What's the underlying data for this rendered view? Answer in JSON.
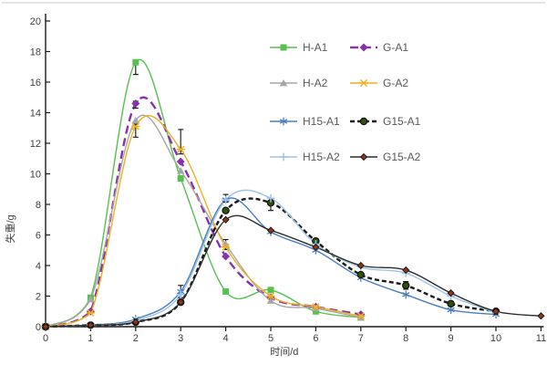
{
  "figure": {
    "background": "#ffffff",
    "top_border_color": "#cccccc",
    "axis_color": "#1a1a1a",
    "tick_label_color": "#404040",
    "legend_text_color": "#595959"
  },
  "chart_data": {
    "type": "line",
    "title": "",
    "xlabel": "时间/d",
    "ylabel": "失重/g",
    "xlim": [
      0,
      11
    ],
    "ylim": [
      0,
      20
    ],
    "x_ticks": [
      0,
      1,
      2,
      3,
      4,
      5,
      6,
      7,
      8,
      9,
      10,
      11
    ],
    "y_ticks": [
      0,
      2,
      4,
      6,
      8,
      10,
      12,
      14,
      16,
      18,
      20
    ],
    "grid": false,
    "legend_position": "upper-center-two-columns",
    "series": [
      {
        "name": "H-A1",
        "color": "#56c14e",
        "dash": "solid",
        "marker": "square",
        "x": [
          0,
          1,
          2,
          3,
          4,
          5,
          6,
          7
        ],
        "values": [
          0,
          1.9,
          17.3,
          9.7,
          2.3,
          2.4,
          1.0,
          0.6
        ]
      },
      {
        "name": "G-A1",
        "color": "#8833aa",
        "dash": "dashed",
        "marker": "diamond",
        "x": [
          0,
          1,
          2,
          3,
          4,
          5,
          6,
          7
        ],
        "values": [
          0,
          1.0,
          14.6,
          10.8,
          4.6,
          1.9,
          1.3,
          0.8
        ]
      },
      {
        "name": "H-A2",
        "color": "#a6a6a6",
        "dash": "solid",
        "marker": "triangle",
        "x": [
          0,
          1,
          2,
          3,
          4,
          5,
          6,
          7
        ],
        "values": [
          0,
          1.8,
          13.5,
          10.2,
          5.4,
          1.7,
          1.2,
          0.6
        ]
      },
      {
        "name": "G-A2",
        "color": "#efb024",
        "dash": "solid",
        "marker": "xstar",
        "x": [
          0,
          1,
          2,
          3,
          4,
          5,
          6,
          7
        ],
        "values": [
          0,
          0.9,
          13.1,
          11.6,
          5.2,
          2.0,
          1.3,
          0.7
        ]
      },
      {
        "name": "H15-A1",
        "color": "#4a7ebb",
        "dash": "solid",
        "marker": "asterisk",
        "x": [
          0,
          1,
          2,
          3,
          4,
          5,
          6,
          7,
          8,
          9,
          10
        ],
        "values": [
          0,
          0.1,
          0.5,
          2.3,
          8.3,
          6.2,
          5.0,
          3.2,
          2.1,
          1.1,
          0.8
        ]
      },
      {
        "name": "G15-A1",
        "color": "#1a1a1a",
        "dash": "dense-dash",
        "marker": "circle",
        "marker_fill": "#2f4f10",
        "x": [
          0,
          1,
          2,
          3,
          4,
          5,
          6,
          7,
          8,
          9,
          10
        ],
        "values": [
          0,
          0.1,
          0.3,
          1.6,
          7.6,
          8.1,
          5.6,
          3.4,
          2.7,
          1.5,
          1.0
        ]
      },
      {
        "name": "H15-A2",
        "color": "#9dc3e6",
        "dash": "solid",
        "marker": "plus",
        "x": [
          0,
          1,
          2,
          3,
          4,
          5,
          6,
          7,
          8,
          9,
          10
        ],
        "values": [
          0,
          0.1,
          0.4,
          2.1,
          8.3,
          8.4,
          5.4,
          3.9,
          3.5,
          2.0,
          0.9
        ]
      },
      {
        "name": "G15-A2",
        "color": "#2b2b2b",
        "dash": "solid",
        "marker": "dot-diamond",
        "marker_fill": "#993311",
        "x": [
          0,
          1,
          2,
          3,
          4,
          5,
          6,
          7,
          8,
          9,
          10,
          11
        ],
        "values": [
          0,
          0.1,
          0.3,
          1.6,
          7.0,
          6.3,
          5.2,
          4.0,
          3.7,
          2.2,
          1.0,
          0.7
        ]
      }
    ],
    "error_bars": [
      {
        "series": "H-A1",
        "x": 2,
        "y": 17.3,
        "minus": 0.8,
        "plus": 0.15
      },
      {
        "series": "G-A1",
        "x": 2,
        "y": 14.6,
        "minus": 0.3,
        "plus": 0.15
      },
      {
        "series": "G-A2",
        "x": 2,
        "y": 13.1,
        "minus": 0.7,
        "plus": 0.15
      },
      {
        "series": "G-A2",
        "x": 3,
        "y": 11.6,
        "minus": 0.3,
        "plus": 1.3
      },
      {
        "series": "H15-A1",
        "x": 3,
        "y": 2.3,
        "minus": 0.4,
        "plus": 0.4
      },
      {
        "series": "H15-A2",
        "x": 4,
        "y": 8.3,
        "minus": 0.15,
        "plus": 0.35
      },
      {
        "series": "H-A2",
        "x": 4,
        "y": 5.4,
        "minus": 0.35,
        "plus": 0.3
      },
      {
        "series": "G15-A1",
        "x": 5,
        "y": 8.1,
        "minus": 0.5,
        "plus": 0.1
      },
      {
        "series": "G15-A1",
        "x": 8,
        "y": 2.7,
        "minus": 0.25,
        "plus": 0.25
      }
    ]
  }
}
